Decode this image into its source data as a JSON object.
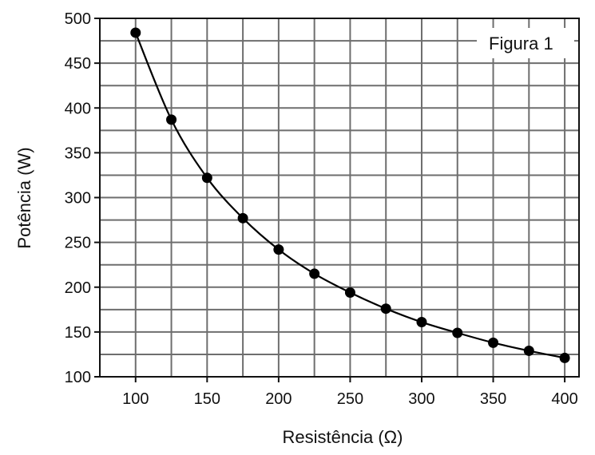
{
  "chart_data": {
    "type": "scatter",
    "title": "",
    "legend_label": "Figura 1",
    "legend_position": "top-right",
    "xlabel": "Resistência (Ω)",
    "ylabel": "Potência (W)",
    "xlim": [
      75,
      410
    ],
    "ylim": [
      100,
      500
    ],
    "x_ticks": [
      100,
      150,
      200,
      250,
      300,
      350,
      400
    ],
    "y_ticks": [
      100,
      150,
      200,
      250,
      300,
      350,
      400,
      450,
      500
    ],
    "x_grid_step": 25,
    "y_grid_step": 25,
    "grid": true,
    "series": [
      {
        "points": [
          {
            "x": 100,
            "y": 484
          },
          {
            "x": 125,
            "y": 387
          },
          {
            "x": 150,
            "y": 322
          },
          {
            "x": 175,
            "y": 277
          },
          {
            "x": 200,
            "y": 242
          },
          {
            "x": 225,
            "y": 215
          },
          {
            "x": 250,
            "y": 194
          },
          {
            "x": 275,
            "y": 176
          },
          {
            "x": 300,
            "y": 161
          },
          {
            "x": 325,
            "y": 149
          },
          {
            "x": 350,
            "y": 138
          },
          {
            "x": 375,
            "y": 129
          },
          {
            "x": 400,
            "y": 121
          }
        ],
        "marker_color": "#000000",
        "curve_color": "#000000"
      }
    ]
  }
}
